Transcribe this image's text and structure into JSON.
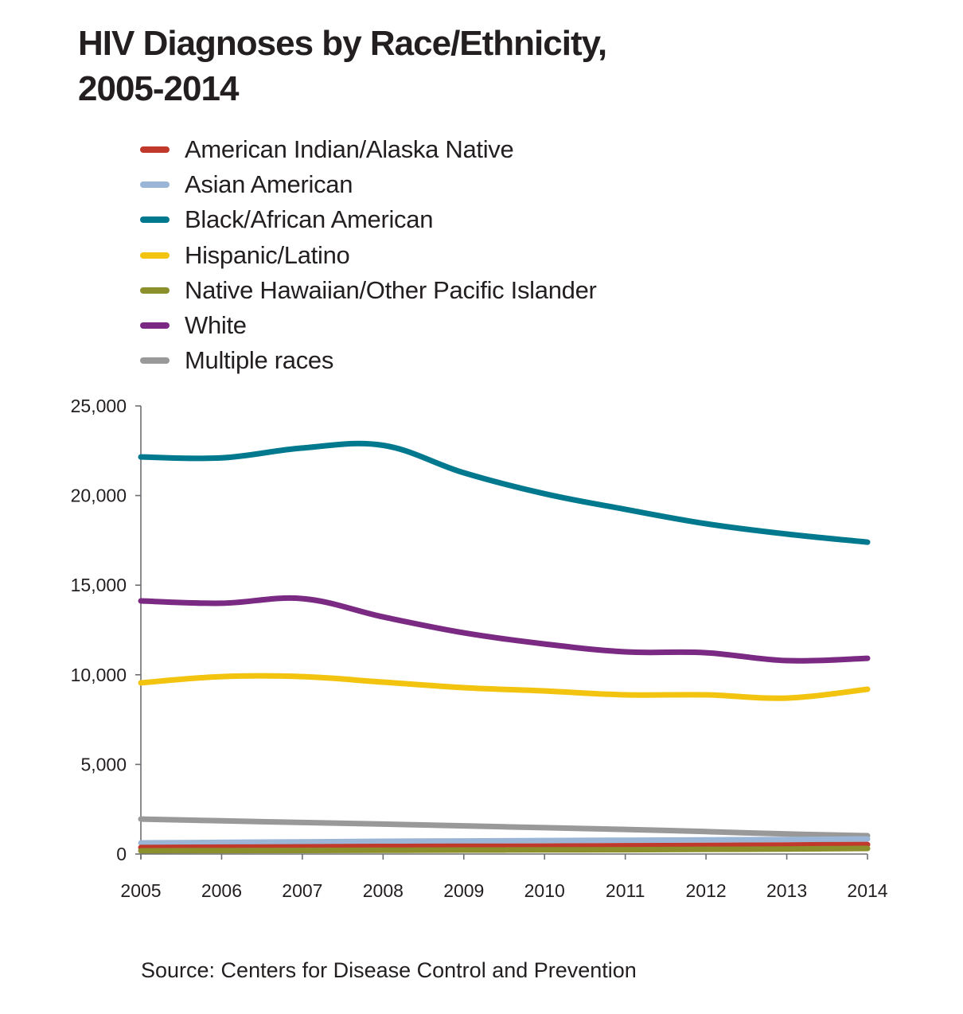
{
  "chart_data": {
    "type": "line",
    "title": "HIV Diagnoses by Race/Ethnicity,",
    "title_line2": "2005-2014",
    "xlabel": "",
    "ylabel": "",
    "x": [
      "2005",
      "2006",
      "2007",
      "2008",
      "2009",
      "2010",
      "2011",
      "2012",
      "2013",
      "2014"
    ],
    "ylim": [
      0,
      25000
    ],
    "yticks": [
      0,
      5000,
      10000,
      15000,
      20000,
      25000
    ],
    "ytick_labels": [
      "0",
      "5,000",
      "10,000",
      "15,000",
      "20,000",
      "25,000"
    ],
    "grid": false,
    "legend_position": "top-left",
    "series": [
      {
        "name": "American Indian/Alaska Native",
        "color": "#c0392b",
        "values": [
          360,
          380,
          400,
          420,
          430,
          440,
          460,
          480,
          500,
          530
        ]
      },
      {
        "name": "Asian American",
        "color": "#9ab5d6",
        "values": [
          620,
          650,
          680,
          710,
          730,
          750,
          770,
          790,
          810,
          840
        ]
      },
      {
        "name": "Black/African American",
        "color": "#00798f",
        "values": [
          22150,
          22100,
          22650,
          22800,
          21270,
          20100,
          19230,
          18430,
          17850,
          17400
        ]
      },
      {
        "name": "Hispanic/Latino",
        "color": "#f2c40f",
        "values": [
          9550,
          9900,
          9900,
          9590,
          9280,
          9100,
          8880,
          8880,
          8700,
          9190
        ]
      },
      {
        "name": "Native Hawaiian/Other Pacific Islander",
        "color": "#8b8f2c",
        "values": [
          180,
          190,
          200,
          210,
          220,
          230,
          240,
          260,
          280,
          310
        ]
      },
      {
        "name": "White",
        "color": "#7a2a82",
        "values": [
          14120,
          13990,
          14250,
          13230,
          12340,
          11720,
          11280,
          11230,
          10790,
          10920
        ]
      },
      {
        "name": "Multiple races",
        "color": "#999999",
        "values": [
          1950,
          1850,
          1760,
          1670,
          1570,
          1470,
          1370,
          1250,
          1120,
          1020
        ]
      }
    ],
    "annotations": []
  },
  "source": "Source: Centers for Disease Control and Prevention"
}
